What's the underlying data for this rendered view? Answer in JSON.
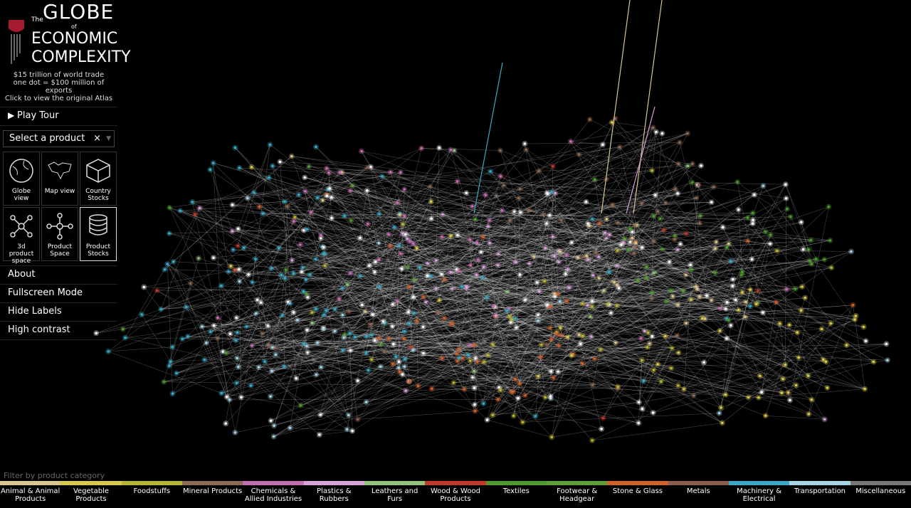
{
  "header": {
    "the": "The",
    "globe": "GLOBE",
    "of": "of",
    "economic": "ECONOMIC",
    "complexity": "COMPLEXITY",
    "line1": "$15 trillion of world trade",
    "line2": "one dot = $100 million of exports",
    "line3": "Click to view the original Atlas"
  },
  "play_tour": "Play Tour",
  "select": {
    "placeholder": "Select a product",
    "clear": "×"
  },
  "views": [
    "Globe view",
    "Map view",
    "Country Stocks",
    "3d product space",
    "Product Space",
    "Product Stocks"
  ],
  "active_view": 5,
  "menu": [
    "About",
    "Fullscreen Mode",
    "Hide Labels",
    "High contrast"
  ],
  "filter": {
    "label": "Filter by product category",
    "categories": [
      {
        "name": "Animal & Animal Products",
        "color": "#d9c58e"
      },
      {
        "name": "Vegetable Products",
        "color": "#d8c84c"
      },
      {
        "name": "Foodstuffs",
        "color": "#b9b534"
      },
      {
        "name": "Mineral Products",
        "color": "#8c6a55"
      },
      {
        "name": "Chemicals & Allied Industries",
        "color": "#c56fb3"
      },
      {
        "name": "Plastics & Rubbers",
        "color": "#d7a3d9"
      },
      {
        "name": "Leathers and Furs",
        "color": "#93c47d"
      },
      {
        "name": "Wood & Wood Products",
        "color": "#c0392b"
      },
      {
        "name": "Textiles",
        "color": "#4f9a30"
      },
      {
        "name": "Footwear & Headgear",
        "color": "#5e9e3c"
      },
      {
        "name": "Stone & Glass",
        "color": "#d2622c"
      },
      {
        "name": "Metals",
        "color": "#8b5f50"
      },
      {
        "name": "Machinery & Electrical",
        "color": "#3ba8c5"
      },
      {
        "name": "Transportation",
        "color": "#a6d3e1"
      },
      {
        "name": "Miscellaneous",
        "color": "#777777"
      }
    ]
  }
}
